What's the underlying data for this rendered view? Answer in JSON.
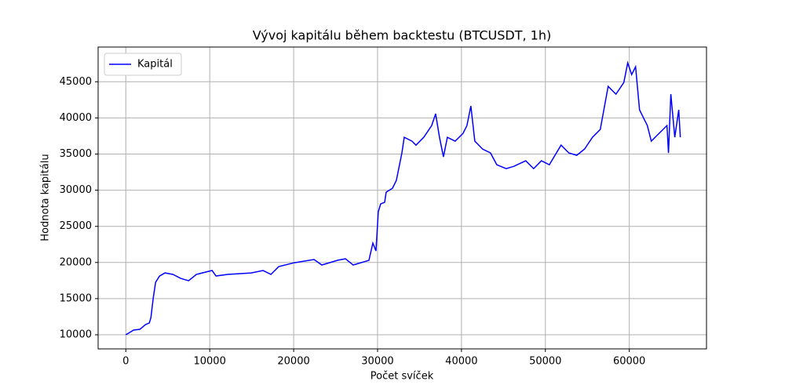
{
  "chart_data": {
    "type": "line",
    "title": "Vývoj kapitálu během backtestu (BTCUSDT, 1h)",
    "x_label": "Počet svíček",
    "y_label": "Hodnota kapitálu",
    "x": [
      0,
      470,
      930,
      1680,
      2340,
      2800,
      2990,
      3270,
      3550,
      4020,
      4670,
      5610,
      6540,
      7480,
      8410,
      10280,
      10750,
      12150,
      14950,
      16360,
      17290,
      18220,
      20090,
      22430,
      23360,
      25230,
      26170,
      27100,
      28970,
      29440,
      29810,
      30090,
      30370,
      30840,
      31030,
      31780,
      32240,
      32900,
      33180,
      34110,
      34580,
      35510,
      36450,
      36920,
      37380,
      37850,
      38320,
      39250,
      40190,
      40650,
      41120,
      41590,
      42520,
      43460,
      44210,
      45330,
      46260,
      47660,
      48600,
      49530,
      50470,
      51870,
      52800,
      53740,
      54670,
      55610,
      56540,
      57480,
      58410,
      59350,
      59810,
      60280,
      60750,
      61220,
      61680,
      62150,
      62620,
      63550,
      64490,
      64670,
      64950,
      65420,
      65890,
      66080
    ],
    "series": [
      {
        "name": "Kapitál",
        "color": "#0000ff",
        "values": [
          10000,
          10330,
          10650,
          10760,
          11410,
          11630,
          12380,
          15090,
          17260,
          18130,
          18560,
          18350,
          17800,
          17480,
          18350,
          18890,
          18130,
          18350,
          18560,
          18890,
          18350,
          19430,
          19970,
          20410,
          19650,
          20300,
          20510,
          19650,
          20300,
          22680,
          21600,
          27020,
          28100,
          28320,
          29730,
          30270,
          31350,
          35150,
          37320,
          36780,
          36230,
          37320,
          38940,
          40570,
          37320,
          34610,
          37320,
          36780,
          37860,
          38940,
          41650,
          36780,
          35690,
          35150,
          33520,
          32980,
          33310,
          34070,
          32980,
          34070,
          33520,
          36230,
          35150,
          34820,
          35690,
          37320,
          38400,
          44360,
          43280,
          44900,
          47610,
          45990,
          47070,
          41110,
          40030,
          38940,
          36780,
          37860,
          38940,
          35150,
          43280,
          37320,
          41110,
          37320
        ]
      }
    ],
    "xlim": [
      -3300,
      69200
    ],
    "ylim": [
      8050,
      49800
    ],
    "xticks": [
      0,
      10000,
      20000,
      30000,
      40000,
      50000,
      60000
    ],
    "yticks": [
      10000,
      15000,
      20000,
      25000,
      30000,
      35000,
      40000,
      45000
    ],
    "grid": true,
    "legend": "upper-left"
  }
}
